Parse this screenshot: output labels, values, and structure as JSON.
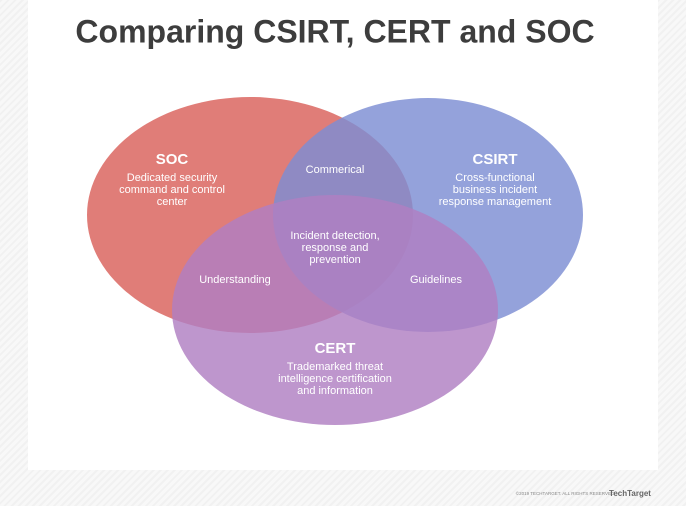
{
  "title": "Comparing CSIRT, CERT and SOC",
  "sets": [
    {
      "name": "SOC",
      "description": [
        "Dedicated security",
        "command and control",
        "center"
      ]
    },
    {
      "name": "CSIRT",
      "description": [
        "Cross-functional",
        "business incident",
        "response management"
      ]
    },
    {
      "name": "CERT",
      "description": [
        "Trademarked threat",
        "intelligence certification",
        "and information"
      ]
    }
  ],
  "intersections": [
    {
      "sets": "SOC+CSIRT",
      "label": [
        "Commerical"
      ]
    },
    {
      "sets": "SOC+CERT",
      "label": [
        "Understanding"
      ]
    },
    {
      "sets": "CSIRT+CERT",
      "label": [
        "Guidelines"
      ]
    },
    {
      "sets": "SOC+CSIRT+CERT",
      "label": [
        "Incident detection,",
        "response and",
        "prevention"
      ]
    }
  ],
  "footer": {
    "copyright": "©2019 TECHTARGET. ALL RIGHTS RESERVED",
    "brand": "TechTarget"
  }
}
